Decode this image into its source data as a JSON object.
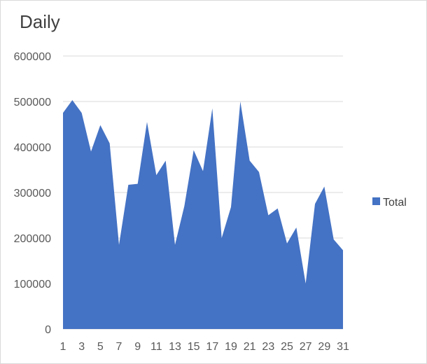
{
  "chart_data": {
    "type": "area",
    "title": "Daily",
    "xlabel": "",
    "ylabel": "",
    "x": [
      1,
      2,
      3,
      4,
      5,
      6,
      7,
      8,
      9,
      10,
      11,
      12,
      13,
      14,
      15,
      16,
      17,
      18,
      19,
      20,
      21,
      22,
      23,
      24,
      25,
      26,
      27,
      28,
      29,
      30,
      31
    ],
    "x_tick_labels": [
      "1",
      "3",
      "5",
      "7",
      "9",
      "11",
      "13",
      "15",
      "17",
      "19",
      "21",
      "23",
      "25",
      "27",
      "29",
      "31"
    ],
    "series": [
      {
        "name": "Total",
        "values": [
          475000,
          503000,
          475000,
          390000,
          448000,
          408000,
          185000,
          317000,
          319000,
          455000,
          338000,
          370000,
          185000,
          270000,
          393000,
          347000,
          485000,
          200000,
          268000,
          500000,
          370000,
          345000,
          250000,
          265000,
          188000,
          223000,
          100000,
          275000,
          313000,
          197000,
          173000
        ]
      }
    ],
    "y_tick_labels": [
      "0",
      "100000",
      "200000",
      "300000",
      "400000",
      "500000",
      "600000"
    ],
    "ylim": [
      0,
      600000
    ],
    "grid": true,
    "legend_position": "right",
    "series_color": "#4472c4"
  }
}
